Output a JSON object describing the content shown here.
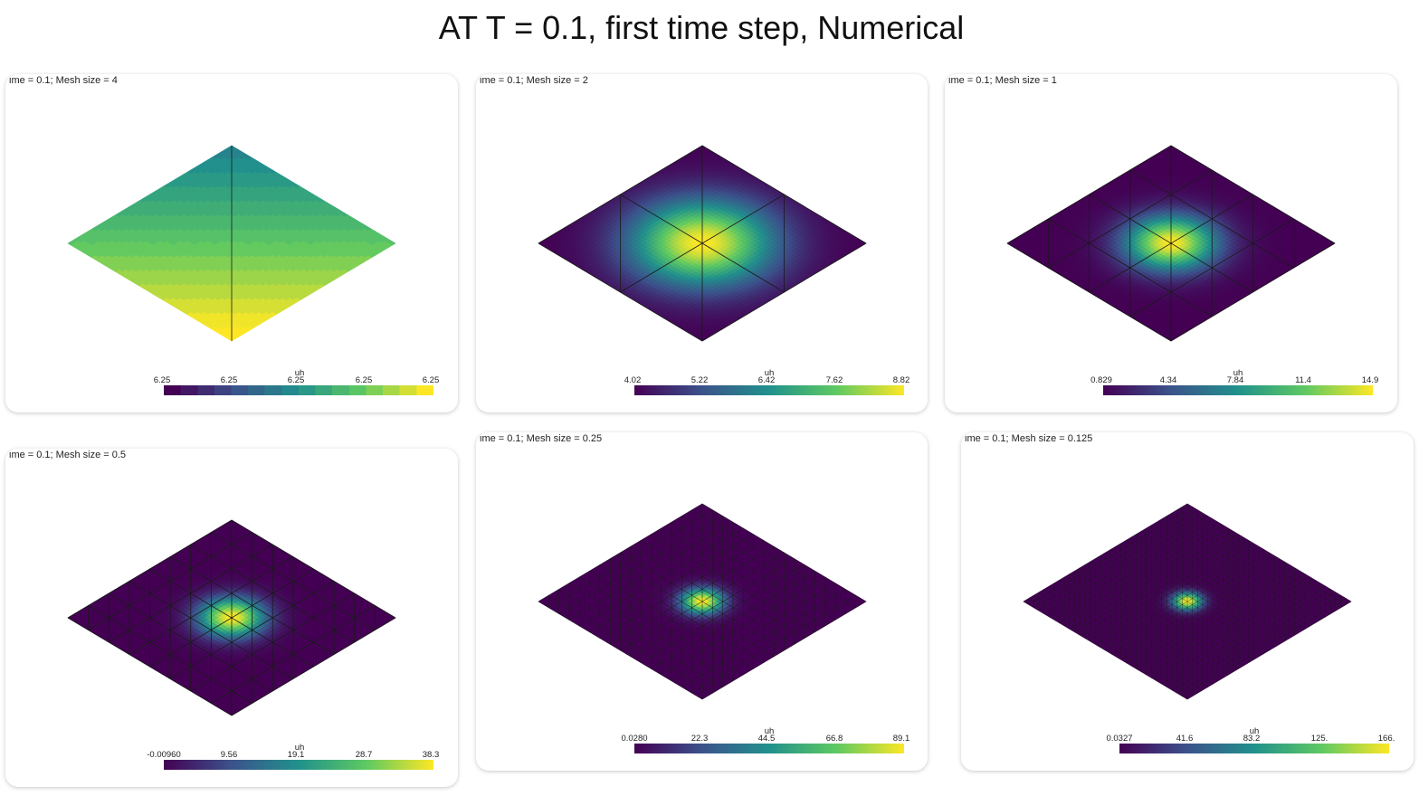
{
  "title": "AT T = 0.1, first time step, Numerical",
  "panels": [
    {
      "caption": "ime = 0.1; Mesh size = 4",
      "colorbar_title": "uh",
      "ticks": [
        "6.25",
        "6.25",
        "6.25",
        "6.25",
        "6.25"
      ],
      "mesh_divisions": 1,
      "peak_sharpness": "flat-banded"
    },
    {
      "caption": "ime = 0.1; Mesh size = 2",
      "colorbar_title": "uh",
      "ticks": [
        "4.02",
        "5.22",
        "6.42",
        "7.62",
        "8.82"
      ],
      "mesh_divisions": 2,
      "peak_sharpness": "broad"
    },
    {
      "caption": "ime = 0.1; Mesh size = 1",
      "colorbar_title": "uh",
      "ticks": [
        "0.829",
        "4.34",
        "7.84",
        "11.4",
        "14.9"
      ],
      "mesh_divisions": 4,
      "peak_sharpness": "medium"
    },
    {
      "caption": "ime = 0.1; Mesh size = 0.5",
      "colorbar_title": "uh",
      "ticks": [
        "-0.00960",
        "9.56",
        "19.1",
        "28.7",
        "38.3"
      ],
      "mesh_divisions": 8,
      "peak_sharpness": "narrow"
    },
    {
      "caption": "ime = 0.1; Mesh size = 0.25",
      "colorbar_title": "uh",
      "ticks": [
        "0.0280",
        "22.3",
        "44.5",
        "66.8",
        "89.1"
      ],
      "mesh_divisions": 16,
      "peak_sharpness": "sharp"
    },
    {
      "caption": "ime = 0.1; Mesh size = 0.125",
      "colorbar_title": "uh",
      "ticks": [
        "0.0327",
        "41.6",
        "83.2",
        "125.",
        "166."
      ],
      "mesh_divisions": 32,
      "peak_sharpness": "very-sharp"
    }
  ],
  "colormap": "viridis",
  "colormap_stops": [
    "#440154",
    "#3b528b",
    "#21918c",
    "#5ec962",
    "#fde725"
  ]
}
